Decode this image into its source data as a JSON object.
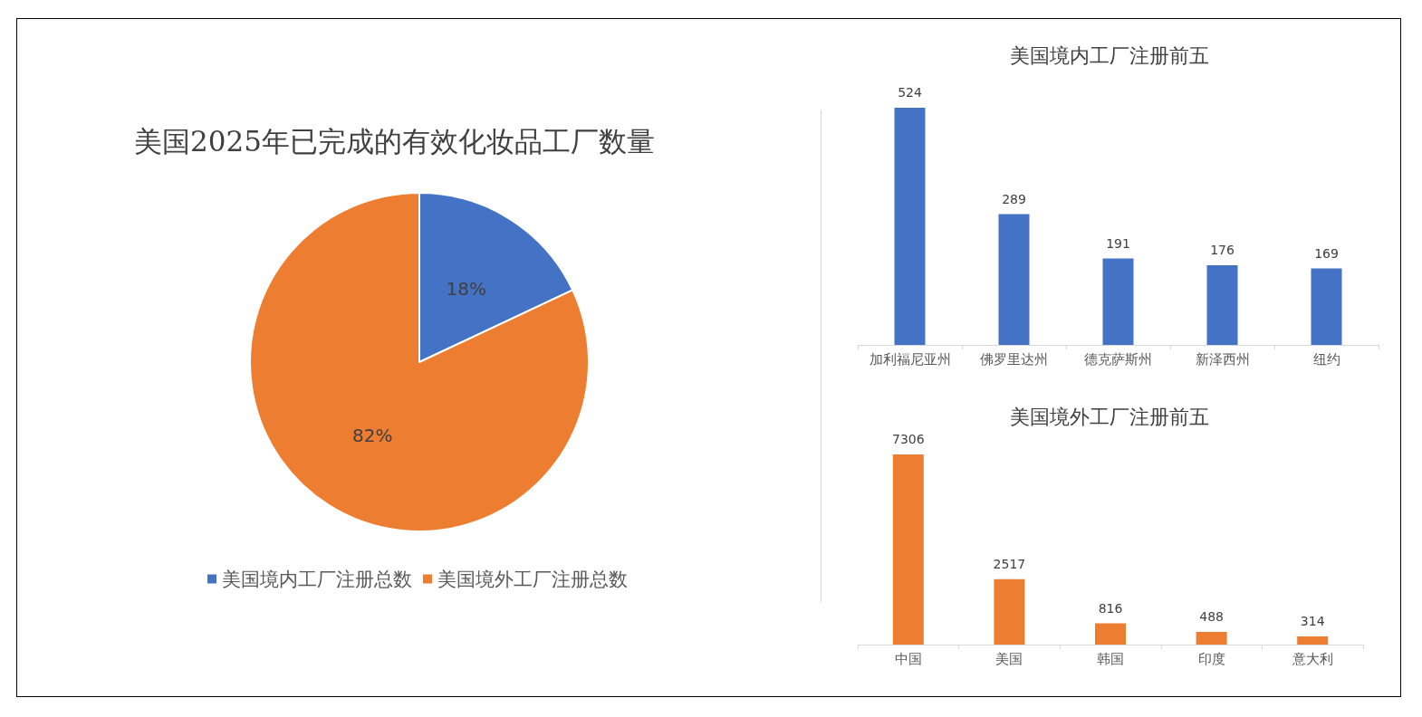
{
  "chart_data": [
    {
      "type": "pie",
      "title": "美国2025年已完成的有效化妆品工厂数量",
      "categories": [
        "美国境内工厂注册总数",
        "美国境外工厂注册总数"
      ],
      "values": [
        18,
        82
      ],
      "value_labels": [
        "18%",
        "82%"
      ],
      "colors": [
        "#4472c4",
        "#ed7d31"
      ],
      "legend": "bottom"
    },
    {
      "type": "bar",
      "title": "美国境内工厂注册前五",
      "categories": [
        "加利福尼亚州",
        "佛罗里达州",
        "德克萨斯州",
        "新泽西州",
        "纽约"
      ],
      "values": [
        524,
        289,
        191,
        176,
        169
      ],
      "color": "#4472c4",
      "data_labels": true,
      "tick_labels": "x"
    },
    {
      "type": "bar",
      "title": "美国境外工厂注册前五",
      "categories": [
        "中国",
        "美国",
        "韩国",
        "印度",
        "意大利"
      ],
      "values": [
        7306,
        2517,
        816,
        488,
        314
      ],
      "color": "#ed7d31",
      "data_labels": true,
      "tick_labels": "x"
    }
  ]
}
